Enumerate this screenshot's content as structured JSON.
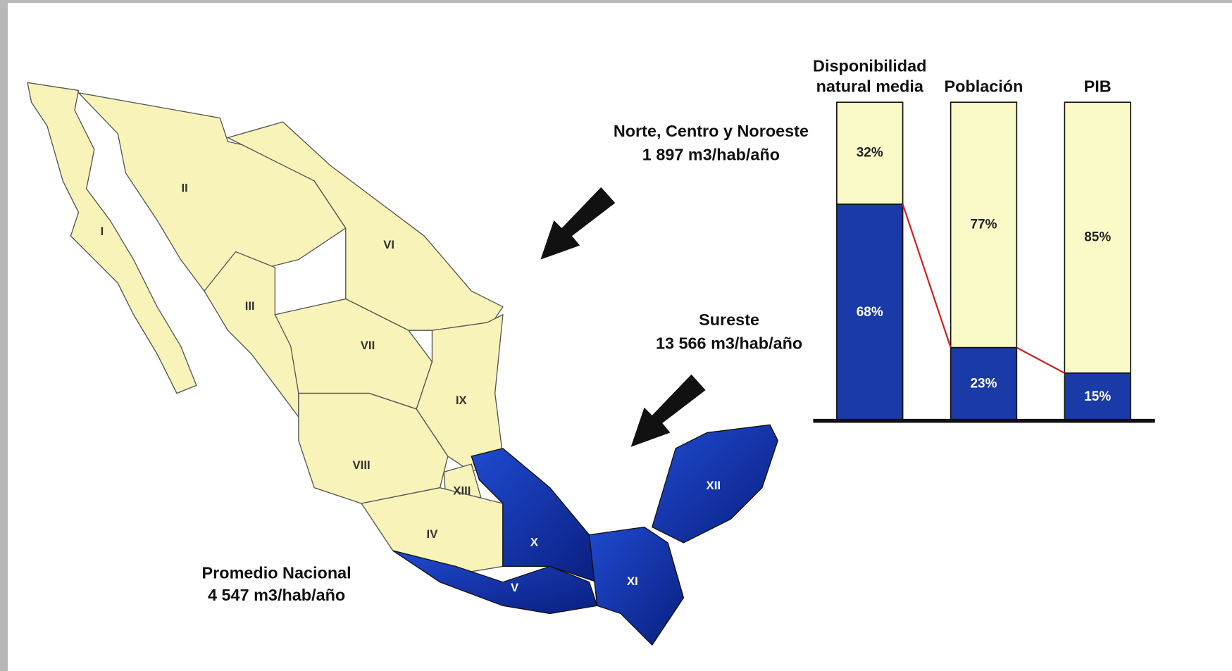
{
  "map": {
    "regions": [
      "I",
      "II",
      "III",
      "IV",
      "V",
      "VI",
      "VII",
      "VIII",
      "IX",
      "X",
      "XI",
      "XII",
      "XIII"
    ],
    "annotations": [
      {
        "text": "Norte, Centro y Noroeste",
        "note": "1 897 m3/hab/año"
      },
      {
        "text": "Sureste",
        "note": "13 566 m3/hab/año"
      },
      {
        "text": "Promedio Nacional",
        "note": "4 547 m3/hab/año"
      }
    ]
  },
  "chart_data": {
    "type": "bar",
    "stacked": true,
    "categories": [
      "Disponibilidad natural media",
      "Población",
      "PIB"
    ],
    "series": [
      {
        "name": "Sureste",
        "color": "#1a3aa8",
        "values": [
          68,
          23,
          15
        ],
        "value_labels": [
          "68%",
          "23%",
          "15%"
        ]
      },
      {
        "name": "Norte, Centro y Noroeste",
        "color": "#fafac8",
        "values": [
          32,
          77,
          85
        ],
        "value_labels": [
          "32%",
          "77%",
          "85%"
        ]
      }
    ],
    "ylim": [
      0,
      100
    ],
    "connector_color": "#cc2222"
  }
}
